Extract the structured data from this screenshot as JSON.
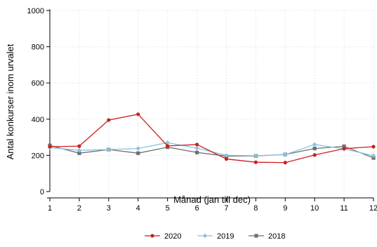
{
  "chart_data": {
    "type": "line",
    "title": "",
    "xlabel": "Månad (jan till dec)",
    "ylabel": "Antal konkurser inom urvalet",
    "x": [
      1,
      2,
      3,
      4,
      5,
      6,
      7,
      8,
      9,
      10,
      11,
      12
    ],
    "xlim": [
      1,
      12
    ],
    "ylim": [
      0,
      1000
    ],
    "yticks": [
      0,
      200,
      400,
      600,
      800,
      1000
    ],
    "xticks": [
      1,
      2,
      3,
      4,
      5,
      6,
      7,
      8,
      9,
      10,
      11,
      12
    ],
    "grid": true,
    "legend_position": "bottom",
    "series": [
      {
        "name": "2020",
        "color": "#cc1f1f",
        "marker": "circle",
        "values": [
          248,
          251,
          395,
          427,
          252,
          260,
          180,
          162,
          160,
          202,
          237,
          248
        ]
      },
      {
        "name": "2019",
        "color": "#87c4e0",
        "marker": "diamond",
        "values": [
          243,
          228,
          232,
          238,
          270,
          240,
          200,
          198,
          204,
          260,
          236,
          198
        ]
      },
      {
        "name": "2018",
        "color": "#707070",
        "marker": "square",
        "values": [
          255,
          212,
          232,
          212,
          245,
          216,
          196,
          197,
          205,
          238,
          250,
          186
        ]
      }
    ]
  }
}
